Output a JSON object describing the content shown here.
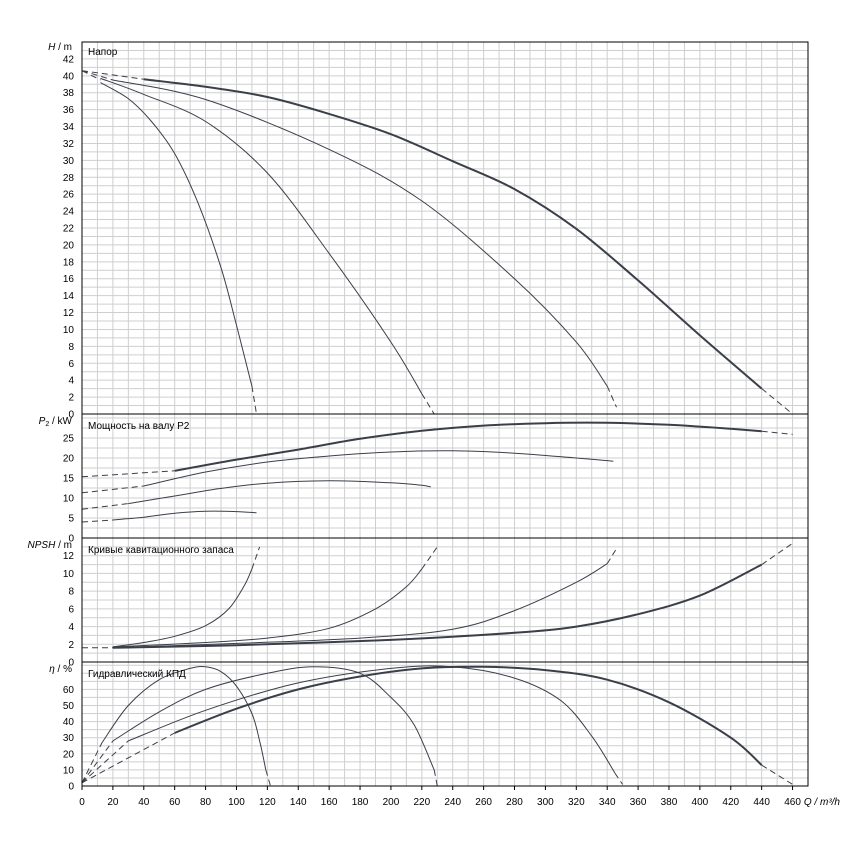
{
  "chart_data": {
    "type": "line",
    "x": {
      "label": "Q / m³/h",
      "range": [
        0,
        470
      ],
      "ticks": [
        0,
        20,
        40,
        60,
        80,
        100,
        120,
        140,
        160,
        180,
        200,
        220,
        240,
        260,
        280,
        300,
        320,
        340,
        360,
        380,
        400,
        420,
        440,
        460
      ]
    },
    "panels": [
      {
        "id": "head",
        "title": "Напор",
        "y_label_main": "H",
        "y_label_unit": " / m",
        "y_range": [
          0,
          44
        ],
        "y_ticks": [
          0,
          2,
          4,
          6,
          8,
          10,
          12,
          14,
          16,
          18,
          20,
          22,
          24,
          26,
          28,
          30,
          32,
          34,
          36,
          38,
          40,
          42
        ],
        "series": [
          {
            "width": 1,
            "points": [
              [
                12,
                39.2
              ],
              [
                30,
                37.3
              ],
              [
                45,
                34.6
              ],
              [
                60,
                30.8
              ],
              [
                75,
                25
              ],
              [
                90,
                17.3
              ],
              [
                100,
                10.5
              ],
              [
                110,
                3.3
              ]
            ],
            "dashes": [
              [
                [
                  110,
                  3.3
                ],
                [
                  113,
                  0
                ]
              ]
            ]
          },
          {
            "width": 1,
            "points": [
              [
                12,
                39.7
              ],
              [
                40,
                37.8
              ],
              [
                80,
                34.6
              ],
              [
                120,
                28.5
              ],
              [
                160,
                19
              ],
              [
                200,
                8.5
              ],
              [
                220,
                2.4
              ]
            ],
            "dashes": [
              [
                [
                  220,
                  2.4
                ],
                [
                  228,
                  0
                ]
              ]
            ]
          },
          {
            "width": 1,
            "points": [
              [
                20,
                39.5
              ],
              [
                80,
                37.2
              ],
              [
                160,
                31.3
              ],
              [
                220,
                25.2
              ],
              [
                280,
                16
              ],
              [
                320,
                8.5
              ],
              [
                340,
                3.3
              ]
            ],
            "dashes": [
              [
                [
                  340,
                  3.3
                ],
                [
                  346,
                  0.8
                ]
              ]
            ]
          },
          {
            "width": 2,
            "points": [
              [
                40,
                39.6
              ],
              [
                80,
                38.7
              ],
              [
                120,
                37.5
              ],
              [
                160,
                35.5
              ],
              [
                200,
                33.1
              ],
              [
                240,
                29.9
              ],
              [
                280,
                26.6
              ],
              [
                320,
                21.9
              ],
              [
                360,
                15.8
              ],
              [
                400,
                9.3
              ],
              [
                440,
                3
              ]
            ],
            "dashes": [
              [
                [
                  440,
                  3
                ],
                [
                  460,
                  0
                ]
              ]
            ]
          }
        ],
        "shared_dashes": [
          [
            [
              0,
              40.6
            ],
            [
              12,
              39.5
            ]
          ],
          [
            [
              0,
              40.6
            ],
            [
              40,
              39.6
            ]
          ],
          [
            [
              0,
              40.6
            ],
            [
              20,
              39.5
            ]
          ]
        ]
      },
      {
        "id": "power",
        "title": "Мощность на валу P2",
        "y_label_main": "P",
        "y_label_sub": "2",
        "y_label_unit": " / kW",
        "y_range": [
          0,
          31
        ],
        "y_ticks": [
          0,
          5,
          10,
          15,
          20,
          25
        ],
        "series": [
          {
            "width": 1,
            "points": [
              [
                20,
                4.5
              ],
              [
                40,
                5.2
              ],
              [
                60,
                6.2
              ],
              [
                80,
                6.7
              ],
              [
                100,
                6.6
              ],
              [
                113,
                6.3
              ]
            ],
            "dashes": [
              [
                [
                  0,
                  4
                ],
                [
                  20,
                  4.5
                ]
              ]
            ]
          },
          {
            "width": 1,
            "points": [
              [
                30,
                8.6
              ],
              [
                60,
                10.5
              ],
              [
                90,
                12.4
              ],
              [
                120,
                13.7
              ],
              [
                160,
                14.3
              ],
              [
                200,
                13.8
              ],
              [
                222,
                13.1
              ]
            ],
            "dashes": [
              [
                [
                  0,
                  7.2
                ],
                [
                  30,
                  8.6
                ]
              ],
              [
                [
                  222,
                  13.1
                ],
                [
                  228,
                  12.6
                ]
              ]
            ]
          },
          {
            "width": 1,
            "points": [
              [
                40,
                13
              ],
              [
                80,
                16.5
              ],
              [
                120,
                19
              ],
              [
                160,
                20.5
              ],
              [
                200,
                21.5
              ],
              [
                240,
                21.8
              ],
              [
                280,
                21.2
              ],
              [
                320,
                20
              ],
              [
                344,
                19.2
              ]
            ],
            "dashes": [
              [
                [
                  0,
                  11.3
                ],
                [
                  40,
                  13
                ]
              ]
            ]
          },
          {
            "width": 2,
            "points": [
              [
                60,
                16.8
              ],
              [
                100,
                19.6
              ],
              [
                140,
                22.1
              ],
              [
                180,
                24.8
              ],
              [
                220,
                26.8
              ],
              [
                260,
                28.1
              ],
              [
                300,
                28.7
              ],
              [
                340,
                28.8
              ],
              [
                380,
                28.3
              ],
              [
                420,
                27.3
              ],
              [
                440,
                26.7
              ]
            ],
            "dashes": [
              [
                [
                  0,
                  15.3
                ],
                [
                  60,
                  16.8
                ]
              ],
              [
                [
                  440,
                  26.7
                ],
                [
                  460,
                  25.9
                ]
              ]
            ]
          }
        ],
        "shared_dashes": []
      },
      {
        "id": "npsh",
        "title": "Кривые кавитационного запаса",
        "y_label_main": "NPSH",
        "y_label_unit": " / m",
        "y_range": [
          0,
          14
        ],
        "y_ticks": [
          0,
          2,
          4,
          6,
          8,
          10,
          12
        ],
        "series": [
          {
            "width": 1,
            "points": [
              [
                20,
                1.7
              ],
              [
                40,
                2.2
              ],
              [
                60,
                2.9
              ],
              [
                80,
                4.1
              ],
              [
                95,
                6
              ],
              [
                105,
                8.6
              ],
              [
                110,
                10.5
              ]
            ],
            "dashes": [
              [
                [
                  110,
                  10.5
                ],
                [
                  115,
                  13
                ]
              ]
            ]
          },
          {
            "width": 1,
            "points": [
              [
                20,
                1.7
              ],
              [
                80,
                2.2
              ],
              [
                120,
                2.7
              ],
              [
                160,
                3.8
              ],
              [
                190,
                6
              ],
              [
                210,
                8.5
              ],
              [
                220,
                10.5
              ]
            ],
            "dashes": [
              [
                [
                  220,
                  10.5
                ],
                [
                  230,
                  13
                ]
              ]
            ]
          },
          {
            "width": 1,
            "points": [
              [
                20,
                1.6
              ],
              [
                100,
                2.1
              ],
              [
                180,
                2.7
              ],
              [
                240,
                3.7
              ],
              [
                280,
                5.8
              ],
              [
                320,
                9
              ],
              [
                340,
                11.1
              ]
            ],
            "dashes": [
              [
                [
                  340,
                  11.1
                ],
                [
                  346,
                  12.8
                ]
              ]
            ]
          },
          {
            "width": 2,
            "points": [
              [
                20,
                1.6
              ],
              [
                100,
                1.9
              ],
              [
                200,
                2.5
              ],
              [
                280,
                3.3
              ],
              [
                320,
                4
              ],
              [
                360,
                5.4
              ],
              [
                400,
                7.5
              ],
              [
                440,
                11
              ]
            ],
            "dashes": [
              [
                [
                  440,
                  11
                ],
                [
                  460,
                  13.4
                ]
              ]
            ]
          }
        ],
        "shared_dashes": [
          [
            [
              0,
              1.6
            ],
            [
              20,
              1.6
            ]
          ]
        ]
      },
      {
        "id": "efficiency",
        "title": "Гидравлический КПД",
        "y_label_main": "η",
        "y_label_unit": " / %",
        "y_range": [
          0,
          77
        ],
        "y_ticks": [
          0,
          10,
          20,
          30,
          40,
          50,
          60
        ],
        "series": [
          {
            "width": 1,
            "points": [
              [
                13,
                27
              ],
              [
                30,
                50
              ],
              [
                50,
                66
              ],
              [
                70,
                73
              ],
              [
                80,
                74
              ],
              [
                90,
                71
              ],
              [
                100,
                62
              ],
              [
                110,
                45
              ],
              [
                115,
                28
              ],
              [
                119,
                10
              ]
            ],
            "dashes": [
              [
                [
                  0,
                  2
                ],
                [
                  13,
                  27
                ]
              ],
              [
                [
                  119,
                  10
                ],
                [
                  122,
                  0
                ]
              ]
            ]
          },
          {
            "width": 1,
            "points": [
              [
                20,
                28
              ],
              [
                50,
                46
              ],
              [
                80,
                60
              ],
              [
                120,
                70
              ],
              [
                150,
                74
              ],
              [
                180,
                70
              ],
              [
                200,
                55
              ],
              [
                215,
                38
              ],
              [
                228,
                10
              ]
            ],
            "dashes": [
              [
                [
                  0,
                  2
                ],
                [
                  20,
                  28
                ]
              ],
              [
                [
                  228,
                  10
                ],
                [
                  230,
                  0
                ]
              ]
            ]
          },
          {
            "width": 1,
            "points": [
              [
                30,
                28
              ],
              [
                80,
                47
              ],
              [
                140,
                64
              ],
              [
                200,
                73
              ],
              [
                240,
                74
              ],
              [
                280,
                67
              ],
              [
                310,
                53
              ],
              [
                330,
                31
              ],
              [
                345,
                8
              ]
            ],
            "dashes": [
              [
                [
                  0,
                  2
                ],
                [
                  30,
                  28
                ]
              ],
              [
                [
                  345,
                  8
                ],
                [
                  350,
                  1
                ]
              ]
            ]
          },
          {
            "width": 2,
            "points": [
              [
                60,
                33
              ],
              [
                100,
                48
              ],
              [
                140,
                60
              ],
              [
                180,
                68
              ],
              [
                220,
                73
              ],
              [
                260,
                74
              ],
              [
                300,
                72
              ],
              [
                340,
                66
              ],
              [
                380,
                52
              ],
              [
                420,
                30
              ],
              [
                440,
                13
              ]
            ],
            "dashes": [
              [
                [
                  0,
                  2
                ],
                [
                  60,
                  33
                ]
              ],
              [
                [
                  440,
                  13
                ],
                [
                  460,
                  1
                ]
              ]
            ]
          }
        ],
        "shared_dashes": []
      }
    ]
  }
}
